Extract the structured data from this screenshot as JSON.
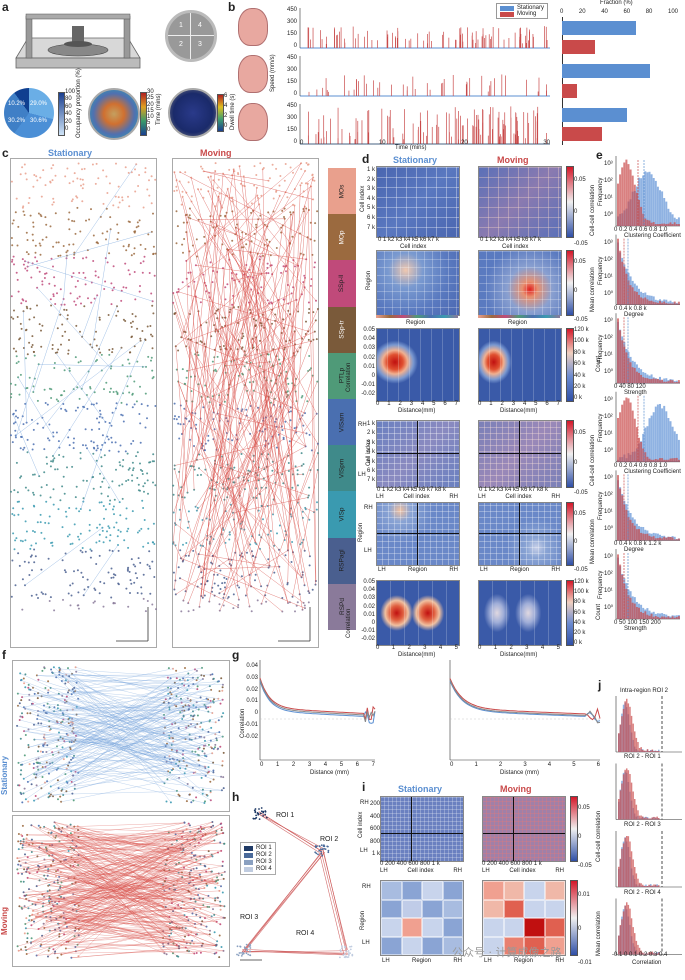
{
  "panels": {
    "a": "a",
    "b": "b",
    "c": "c",
    "d": "d",
    "e": "e",
    "f": "f",
    "g": "g",
    "h": "h",
    "i": "i",
    "j": "j"
  },
  "conditions": {
    "stationary": "Stationary",
    "moving": "Moving"
  },
  "colors": {
    "stationary": "#5b8fd1",
    "moving": "#c94a4a",
    "heat_low": "#2f4fa6",
    "heat_high": "#d4182a"
  },
  "panel_a": {
    "arena_quadrants": [
      "1",
      "4",
      "2",
      "3"
    ],
    "pie_values": [
      "10.2%",
      "29.0%",
      "30.2%",
      "30.6%"
    ],
    "occupancy_label": "Occupancy proportion (%)",
    "occupancy_ticks": [
      "100",
      "80",
      "60",
      "40",
      "20",
      "0"
    ],
    "time_label": "Time (mins)",
    "time_ticks": [
      "30",
      "25",
      "20",
      "15",
      "10",
      "5",
      "0"
    ],
    "dwell_label": "Dwell time (s)",
    "dwell_ticks": [
      "6",
      "4",
      "2",
      "0"
    ]
  },
  "panel_b": {
    "legend": [
      "Stationary",
      "Moving"
    ],
    "fraction_label": "Fraction (%)",
    "fraction_ticks": [
      "0",
      "20",
      "40",
      "60",
      "80",
      "100"
    ],
    "speed_label": "Speed (mm/s)",
    "speed_ticks": [
      "450",
      "300",
      "150",
      "0"
    ],
    "time_axis_label": "Time (mins)",
    "time_ticks": [
      "0",
      "10",
      "20",
      "30"
    ]
  },
  "panel_c": {
    "regions": [
      "MOs",
      "MOp",
      "SSp-ll",
      "SSp-tr",
      "PTLp",
      "VISam",
      "VISpm",
      "VISp",
      "RSPagl",
      "RSPd"
    ],
    "region_colors": [
      "#e9a08d",
      "#9b6a3f",
      "#c04a7a",
      "#7a5a3a",
      "#4f9a78",
      "#4a6fb0",
      "#3f8a8a",
      "#3a9ab0",
      "#4a5f8f",
      "#8a7a9a"
    ]
  },
  "panel_d": {
    "cell_index_label": "Cell index",
    "cell_ticks": [
      "1 k",
      "2 k",
      "3 k",
      "4 k",
      "5 k",
      "6 k",
      "7 k"
    ],
    "cell_ticks_x": "0 1 k2 k3 k4 k5 k6 k7 k",
    "cell_ticks_x2": "0 1 k2 k3 k4 k5 k6 k7 k8 k",
    "region_label": "Region",
    "correlation_label": "Correlation",
    "distance_label": "Distance(mm)",
    "corr_ticks": [
      "0.05",
      "0.04",
      "0.03",
      "0.02",
      "0.01",
      "0",
      "-0.01",
      "-0.02"
    ],
    "dist_ticks_1": [
      "0",
      "1",
      "2",
      "3",
      "4",
      "5",
      "6",
      "7"
    ],
    "dist_ticks_2": [
      "0",
      "1",
      "2",
      "3",
      "4",
      "5"
    ],
    "cb_corr": {
      "label": "Cell-cell correlation",
      "ticks": [
        "0.05",
        "0",
        "-0.05"
      ]
    },
    "cb_mean": {
      "label": "Mean correlation",
      "ticks": [
        "0.05",
        "0",
        "-0.05"
      ]
    },
    "cb_count": {
      "label": "Count",
      "ticks": [
        "120 k",
        "100 k",
        "80 k",
        "60 k",
        "40 k",
        "20 k",
        "0 k"
      ]
    },
    "hemis": [
      "LH",
      "RH"
    ]
  },
  "panel_e": {
    "frequency_label": "Frequency",
    "freq_ticks": [
      "10³",
      "10²",
      "10¹",
      "10⁰"
    ],
    "plots": [
      {
        "xlabel": "Clustering Coefficient",
        "ticks": "0  0.2  0.4  0.6  0.8  1.0"
      },
      {
        "xlabel": "Degree",
        "ticks": "0     0.4 k   0.8 k"
      },
      {
        "xlabel": "Strength",
        "ticks": "0     40     80    120"
      },
      {
        "xlabel": "Clustering Coefficient",
        "ticks": "0  0.2  0.4  0.6  0.8  1.0"
      },
      {
        "xlabel": "Degree",
        "ticks": "0  0.4 k  0.8 k  1.2 k"
      },
      {
        "xlabel": "Strength",
        "ticks": "0   50  100  150  200"
      }
    ]
  },
  "panel_g": {
    "ylabel": "Correlation",
    "xlabel": "Distance (mm)",
    "yticks": [
      "0.04",
      "0.03",
      "0.02",
      "0.01",
      "0",
      "-0.01",
      "-0.02"
    ],
    "xticks_1": [
      "0",
      "1",
      "2",
      "3",
      "4",
      "5",
      "6",
      "7"
    ],
    "xticks_2": [
      "0",
      "1",
      "2",
      "3",
      "4",
      "5",
      "6"
    ]
  },
  "panel_h": {
    "rois": [
      "ROI 1",
      "ROI 2",
      "ROI 3",
      "ROI 4"
    ]
  },
  "panel_i": {
    "cell_index_label": "Cell index",
    "cell_ticks": [
      "200",
      "400",
      "600",
      "800",
      "1 k"
    ],
    "cell_ticks_x": "0  200 400 600 800 1 k",
    "region_label": "Region",
    "hemis": [
      "LH",
      "RH"
    ],
    "cb_corr": {
      "label": "Cell-cell correlation",
      "ticks": [
        "0.05",
        "0",
        "-0.05"
      ]
    },
    "cb_mean": {
      "label": "Mean correlation",
      "ticks": [
        "0.01",
        "0",
        "-0.01"
      ]
    }
  },
  "panel_j": {
    "titles": [
      "Intra-region ROI 2",
      "ROI 2 - ROI 1",
      "ROI 2 - ROI 3",
      "ROI 2 - ROI 4"
    ],
    "frequency_label": "Frequency",
    "xlabel": "Correlation",
    "xticks": "-0.1  0   0.1  0.2  0.3  0.4"
  },
  "watermark": "公众号 · 计算成像之路"
}
